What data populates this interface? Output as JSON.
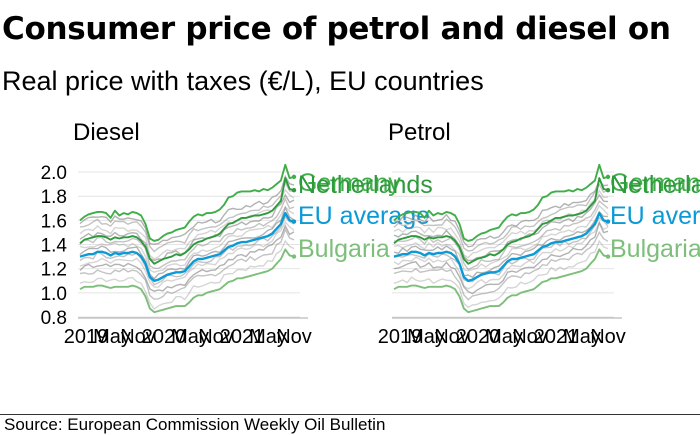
{
  "title": "Consumer price of petrol and diesel on",
  "subtitle": "Real price with taxes (€/L), EU countries",
  "source": "Source: European Commission Weekly Oil Bulletin",
  "colors": {
    "germany": "#3fae49",
    "netherlands": "#2e9a3c",
    "eu_average": "#0a9ad6",
    "bulgaria": "#7dbf7a",
    "other_countries": "#888888",
    "axis": "#aaaaaa"
  },
  "chart_data": [
    {
      "type": "line",
      "title": "Diesel",
      "ylim": [
        0.8,
        2.05
      ],
      "yticks": [
        0.8,
        1.0,
        1.2,
        1.4,
        1.6,
        1.8,
        2.0
      ],
      "ytick_labels": [
        "0.8",
        "1.0",
        "1.2",
        "1.4",
        "1.6",
        "1.8",
        "2.0"
      ],
      "xticks": [
        "2019",
        "May",
        "Nov",
        "2020",
        "May",
        "Nov",
        "2021",
        "May",
        "Nov"
      ],
      "series": [
        {
          "name": "Germany",
          "color": "#3fae49",
          "values": [
            1.6,
            1.63,
            1.65,
            1.66,
            1.67,
            1.67,
            1.66,
            1.62,
            1.68,
            1.64,
            1.66,
            1.65,
            1.67,
            1.66,
            1.64,
            1.57,
            1.45,
            1.43,
            1.44,
            1.47,
            1.49,
            1.5,
            1.52,
            1.53,
            1.54,
            1.59,
            1.63,
            1.65,
            1.64,
            1.66,
            1.66,
            1.67,
            1.69,
            1.73,
            1.79,
            1.8,
            1.83,
            1.84,
            1.84,
            1.84,
            1.85,
            1.84,
            1.86,
            1.85,
            1.87,
            1.9,
            1.93,
            2.06,
            1.95,
            1.96
          ]
        },
        {
          "name": "Netherlands",
          "color": "#2e9a3c",
          "values": [
            1.41,
            1.44,
            1.45,
            1.46,
            1.47,
            1.47,
            1.46,
            1.44,
            1.46,
            1.45,
            1.46,
            1.46,
            1.47,
            1.46,
            1.43,
            1.38,
            1.28,
            1.24,
            1.26,
            1.28,
            1.29,
            1.3,
            1.32,
            1.31,
            1.33,
            1.36,
            1.4,
            1.42,
            1.43,
            1.45,
            1.46,
            1.47,
            1.49,
            1.53,
            1.57,
            1.58,
            1.6,
            1.62,
            1.62,
            1.63,
            1.64,
            1.64,
            1.65,
            1.66,
            1.68,
            1.72,
            1.76,
            1.95,
            1.86,
            1.85
          ]
        },
        {
          "name": "EU average",
          "color": "#0a9ad6",
          "values": [
            1.3,
            1.31,
            1.32,
            1.32,
            1.34,
            1.34,
            1.33,
            1.31,
            1.33,
            1.32,
            1.33,
            1.33,
            1.34,
            1.33,
            1.3,
            1.24,
            1.13,
            1.1,
            1.11,
            1.13,
            1.15,
            1.16,
            1.17,
            1.17,
            1.18,
            1.22,
            1.26,
            1.28,
            1.28,
            1.29,
            1.3,
            1.31,
            1.32,
            1.35,
            1.38,
            1.39,
            1.41,
            1.42,
            1.42,
            1.43,
            1.44,
            1.45,
            1.46,
            1.47,
            1.49,
            1.53,
            1.57,
            1.66,
            1.6,
            1.59
          ]
        },
        {
          "name": "Bulgaria",
          "color": "#7dbf7a",
          "values": [
            1.03,
            1.05,
            1.05,
            1.05,
            1.06,
            1.06,
            1.05,
            1.04,
            1.05,
            1.05,
            1.05,
            1.05,
            1.06,
            1.05,
            1.03,
            0.97,
            0.87,
            0.84,
            0.85,
            0.86,
            0.87,
            0.88,
            0.89,
            0.89,
            0.89,
            0.92,
            0.96,
            0.98,
            0.98,
            1.0,
            1.01,
            1.02,
            1.03,
            1.06,
            1.09,
            1.1,
            1.12,
            1.12,
            1.13,
            1.14,
            1.15,
            1.16,
            1.17,
            1.18,
            1.2,
            1.24,
            1.28,
            1.36,
            1.31,
            1.3
          ]
        }
      ]
    },
    {
      "type": "line",
      "title": "Petrol",
      "ylim": [
        0.8,
        2.05
      ],
      "yticks": [
        0.8,
        1.0,
        1.2,
        1.4,
        1.6,
        1.8,
        2.0
      ],
      "xticks": [
        "2019",
        "May",
        "Nov",
        "2020",
        "May",
        "Nov",
        "2021",
        "May",
        "Nov"
      ],
      "series": [
        {
          "name": "Germany",
          "color": "#3fae49",
          "values": [
            1.6,
            1.63,
            1.65,
            1.66,
            1.67,
            1.67,
            1.66,
            1.62,
            1.68,
            1.64,
            1.66,
            1.65,
            1.67,
            1.66,
            1.64,
            1.57,
            1.45,
            1.43,
            1.44,
            1.47,
            1.49,
            1.5,
            1.52,
            1.53,
            1.54,
            1.59,
            1.63,
            1.65,
            1.64,
            1.66,
            1.66,
            1.67,
            1.69,
            1.73,
            1.79,
            1.8,
            1.83,
            1.84,
            1.84,
            1.84,
            1.85,
            1.84,
            1.86,
            1.85,
            1.87,
            1.9,
            1.93,
            2.06,
            1.95,
            1.96
          ]
        },
        {
          "name": "Netherlands",
          "color": "#2e9a3c",
          "values": [
            1.41,
            1.44,
            1.45,
            1.46,
            1.47,
            1.47,
            1.46,
            1.44,
            1.46,
            1.45,
            1.46,
            1.46,
            1.47,
            1.46,
            1.43,
            1.38,
            1.28,
            1.24,
            1.26,
            1.28,
            1.29,
            1.3,
            1.32,
            1.31,
            1.33,
            1.36,
            1.4,
            1.42,
            1.43,
            1.45,
            1.46,
            1.47,
            1.49,
            1.53,
            1.57,
            1.58,
            1.6,
            1.62,
            1.62,
            1.63,
            1.64,
            1.64,
            1.65,
            1.66,
            1.68,
            1.72,
            1.76,
            1.95,
            1.86,
            1.85
          ]
        },
        {
          "name": "EU average",
          "color": "#0a9ad6",
          "values": [
            1.3,
            1.31,
            1.32,
            1.32,
            1.34,
            1.34,
            1.33,
            1.31,
            1.33,
            1.32,
            1.33,
            1.33,
            1.34,
            1.33,
            1.3,
            1.24,
            1.13,
            1.1,
            1.11,
            1.13,
            1.15,
            1.16,
            1.17,
            1.17,
            1.18,
            1.22,
            1.26,
            1.28,
            1.28,
            1.29,
            1.3,
            1.31,
            1.32,
            1.35,
            1.38,
            1.39,
            1.41,
            1.42,
            1.42,
            1.43,
            1.44,
            1.45,
            1.46,
            1.47,
            1.49,
            1.53,
            1.57,
            1.66,
            1.6,
            1.59
          ]
        },
        {
          "name": "Bulgaria",
          "color": "#7dbf7a",
          "values": [
            1.03,
            1.05,
            1.05,
            1.05,
            1.06,
            1.06,
            1.05,
            1.04,
            1.05,
            1.05,
            1.05,
            1.05,
            1.06,
            1.05,
            1.03,
            0.97,
            0.87,
            0.84,
            0.85,
            0.86,
            0.87,
            0.88,
            0.89,
            0.89,
            0.89,
            0.92,
            0.96,
            0.98,
            0.98,
            1.0,
            1.01,
            1.02,
            1.03,
            1.06,
            1.09,
            1.1,
            1.12,
            1.12,
            1.13,
            1.14,
            1.15,
            1.16,
            1.17,
            1.18,
            1.2,
            1.24,
            1.28,
            1.36,
            1.31,
            1.3
          ]
        }
      ]
    }
  ]
}
